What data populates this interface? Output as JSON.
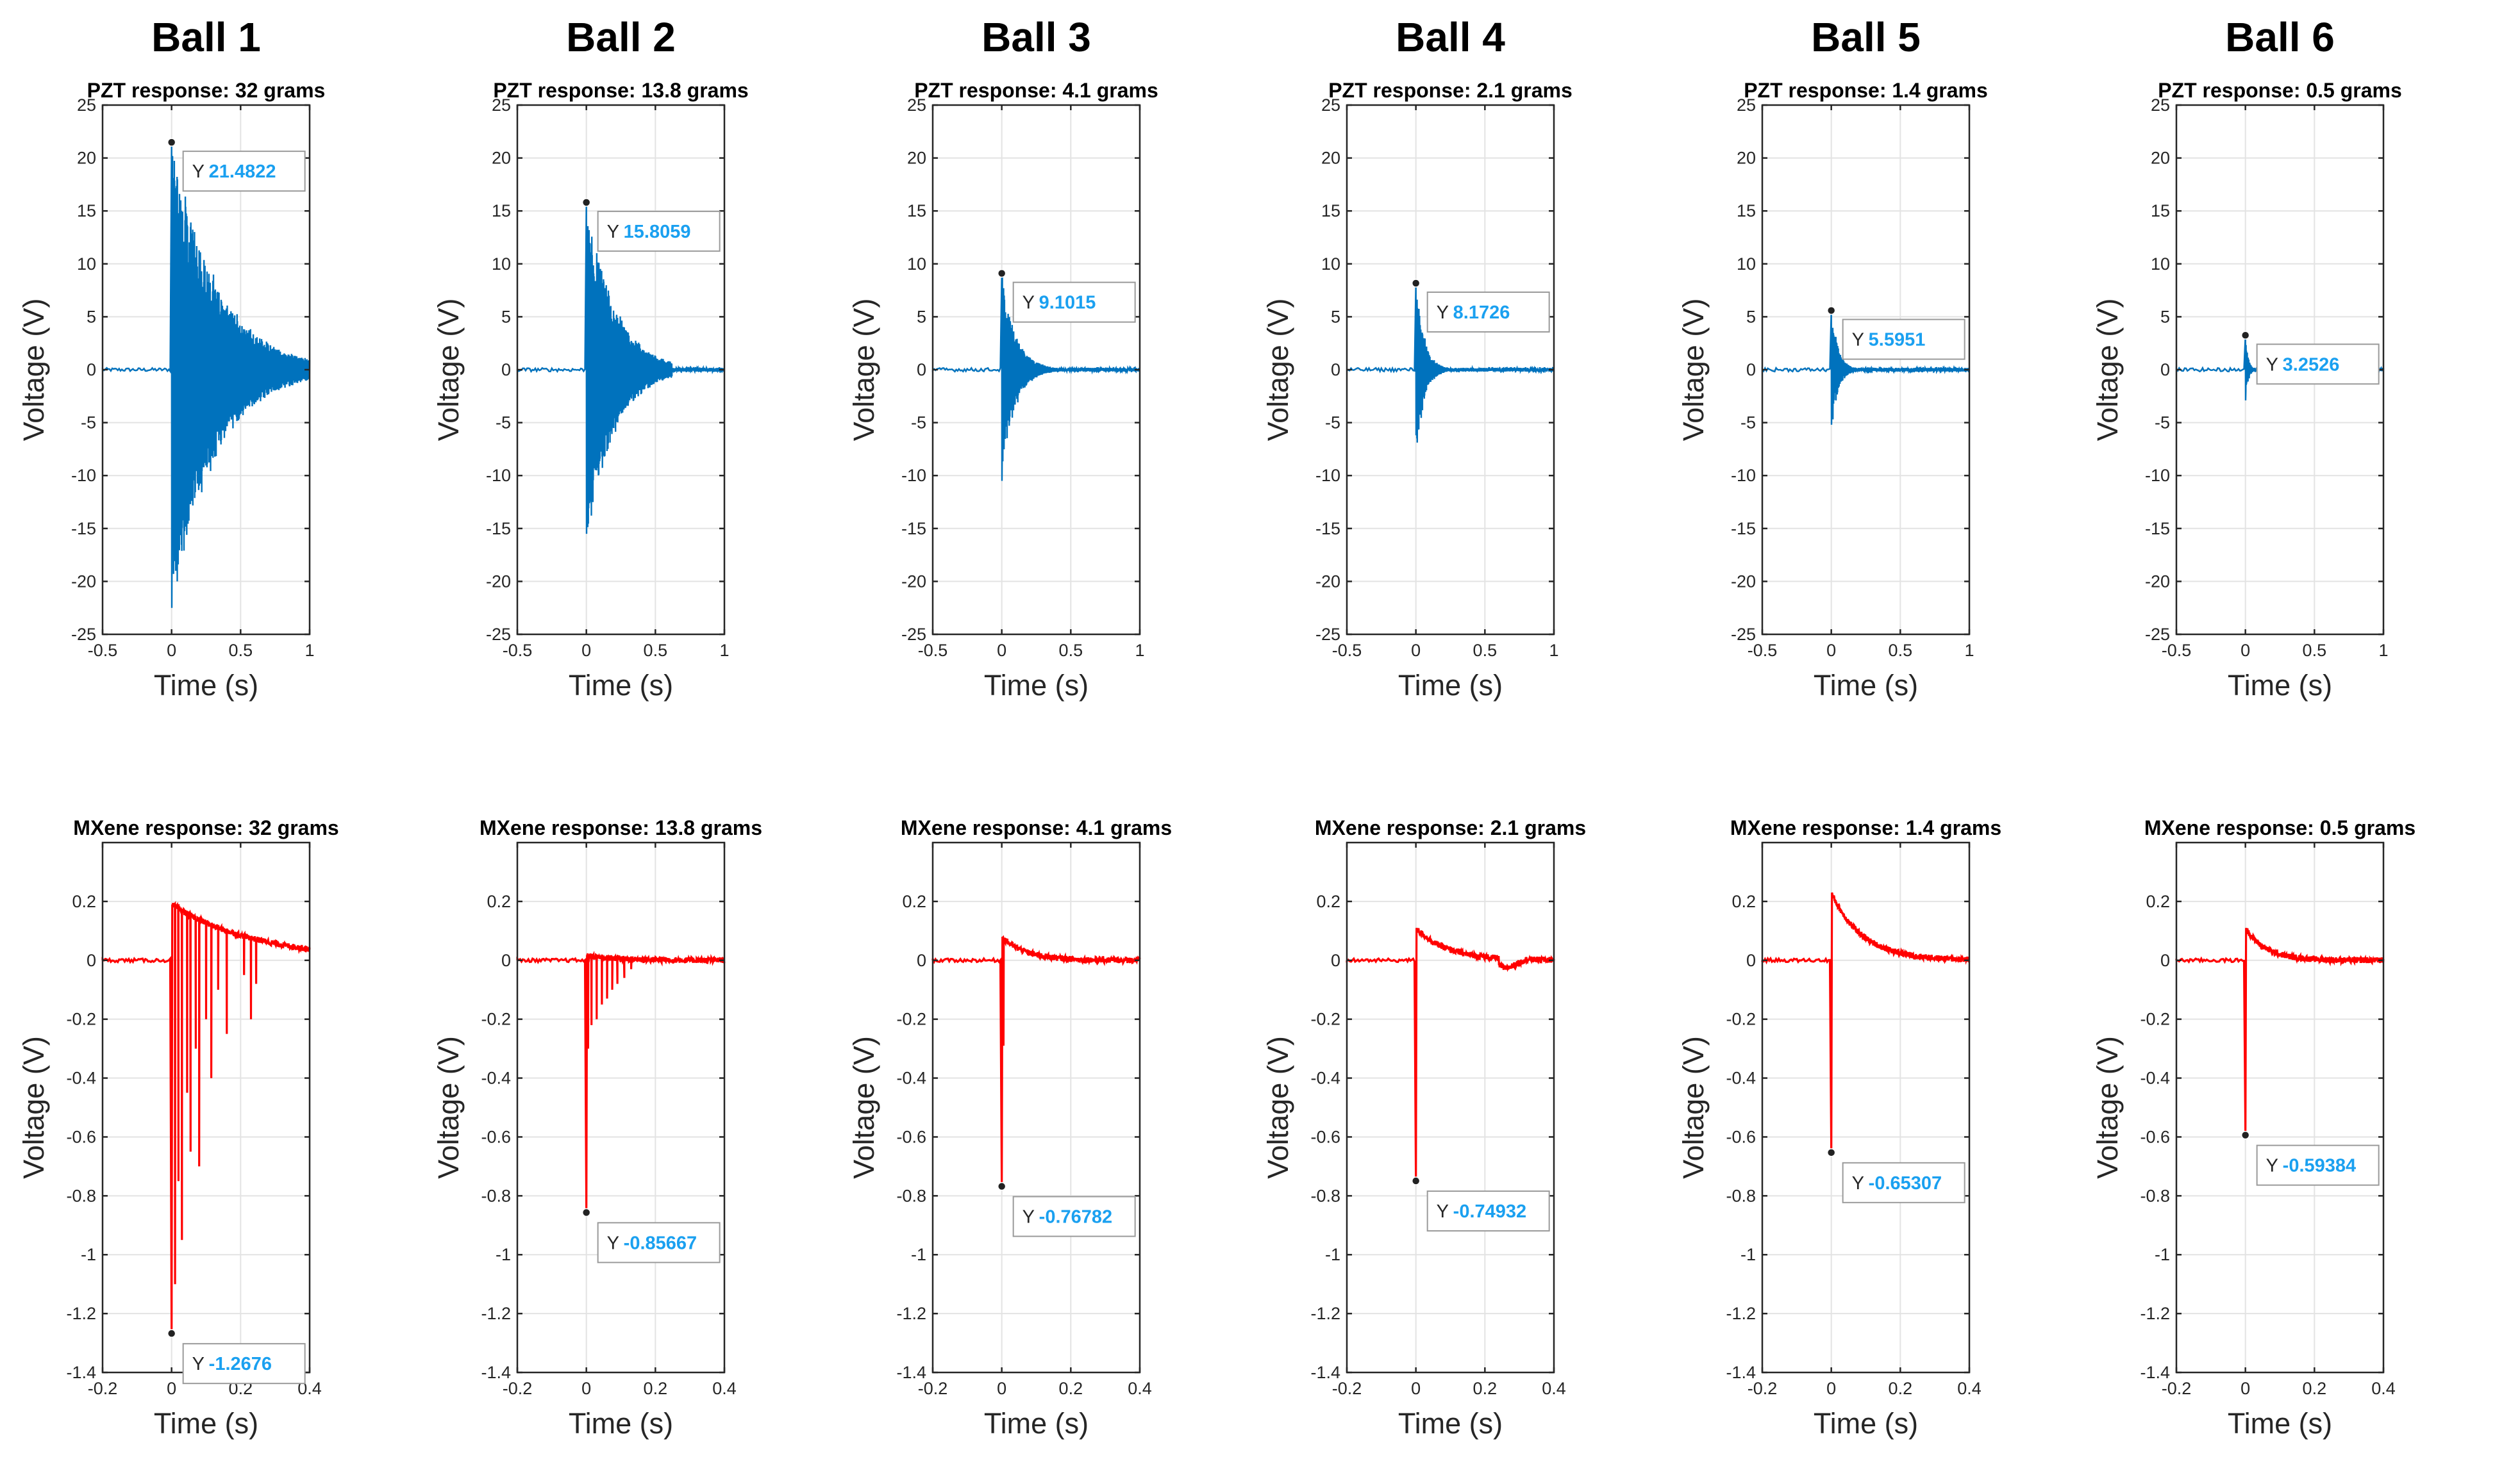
{
  "colors": {
    "pzt": "#0072BD",
    "mxene": "#FF0000",
    "datatip_value": "#1AA0F0"
  },
  "balls": [
    "Ball 1",
    "Ball 2",
    "Ball 3",
    "Ball 4",
    "Ball 5",
    "Ball 6"
  ],
  "chart_data": [
    {
      "row": "PZT",
      "type": "line",
      "xlabel": "Time (s)",
      "ylabel": "Voltage (V)",
      "xlim": [
        -0.5,
        1
      ],
      "ylim": [
        -25,
        25
      ],
      "xticks": [
        -0.5,
        0,
        0.5,
        1
      ],
      "xtick_labels": [
        "-0.5",
        "0",
        "0.5",
        "1"
      ],
      "yticks": [
        -25,
        -20,
        -15,
        -10,
        -5,
        0,
        5,
        10,
        15,
        20,
        25
      ],
      "ytick_labels": [
        "-25",
        "-20",
        "-15",
        "-10",
        "-5",
        "0",
        "5",
        "10",
        "15",
        "20",
        "25"
      ],
      "panels": [
        {
          "title": "PZT response: 32 grams",
          "peak": 21.4822,
          "min": -22.5,
          "decay": 0.32,
          "duration": 1.0,
          "tip_label": "Y",
          "tip_value": "21.4822"
        },
        {
          "title": "PZT response: 13.8 grams",
          "peak": 15.8059,
          "min": -15.5,
          "decay": 0.2,
          "duration": 0.62,
          "tip_label": "Y",
          "tip_value": "15.8059"
        },
        {
          "title": "PZT response: 4.1 grams",
          "peak": 9.1015,
          "min": -10.5,
          "decay": 0.1,
          "duration": 0.5,
          "tip_label": "Y",
          "tip_value": "9.1015"
        },
        {
          "title": "PZT response: 2.1 grams",
          "peak": 8.1726,
          "min": -6.2,
          "decay": 0.06,
          "duration": 0.4,
          "tip_label": "Y",
          "tip_value": "8.1726"
        },
        {
          "title": "PZT response: 1.4 grams",
          "peak": 5.5951,
          "min": -5.2,
          "decay": 0.05,
          "duration": 0.35,
          "tip_label": "Y",
          "tip_value": "5.5951"
        },
        {
          "title": "PZT response: 0.5 grams",
          "peak": 3.2526,
          "min": -2.9,
          "decay": 0.02,
          "duration": 0.2,
          "tip_label": "Y",
          "tip_value": "3.2526"
        }
      ]
    },
    {
      "row": "MXene",
      "type": "line",
      "xlabel": "Time (s)",
      "ylabel": "Voltage (V)",
      "xlim": [
        -0.2,
        0.4
      ],
      "ylim": [
        -1.4,
        0.4
      ],
      "xticks": [
        -0.2,
        0,
        0.2,
        0.4
      ],
      "xtick_labels": [
        "-0.2",
        "0",
        "0.2",
        "0.4"
      ],
      "yticks": [
        -1.4,
        -1.2,
        -1,
        -0.8,
        -0.6,
        -0.4,
        -0.2,
        0,
        0.2
      ],
      "ytick_labels": [
        "-1.4",
        "-1.2",
        "-1",
        "-0.8",
        "-0.6",
        "-0.4",
        "-0.2",
        "0",
        "0.2"
      ],
      "panels": [
        {
          "title": "MXene response: 32 grams",
          "min": -1.2676,
          "plateau": 0.19,
          "decay": 0.25,
          "tip_label": "Y",
          "tip_value": "-1.2676",
          "dips": [
            [
              0.01,
              -1.1
            ],
            [
              0.02,
              -0.75
            ],
            [
              0.03,
              -0.95
            ],
            [
              0.045,
              -0.45
            ],
            [
              0.055,
              -0.65
            ],
            [
              0.07,
              -0.3
            ],
            [
              0.08,
              -0.7
            ],
            [
              0.1,
              -0.2
            ],
            [
              0.115,
              -0.4
            ],
            [
              0.135,
              -0.1
            ],
            [
              0.16,
              -0.25
            ],
            [
              0.21,
              -0.05
            ],
            [
              0.23,
              -0.2
            ],
            [
              0.245,
              -0.08
            ]
          ]
        },
        {
          "title": "MXene response: 13.8 grams",
          "min": -0.85667,
          "plateau": 0.015,
          "decay": 0.1,
          "tip_label": "Y",
          "tip_value": "-0.85667",
          "dips": [
            [
              0.005,
              -0.3
            ],
            [
              0.015,
              -0.22
            ],
            [
              0.03,
              -0.2
            ],
            [
              0.045,
              -0.15
            ],
            [
              0.06,
              -0.13
            ],
            [
              0.075,
              -0.1
            ],
            [
              0.09,
              -0.08
            ],
            [
              0.11,
              -0.06
            ],
            [
              0.13,
              -0.03
            ]
          ]
        },
        {
          "title": "MXene response: 4.1 grams",
          "min": -0.76782,
          "plateau": 0.08,
          "decay": 0.07,
          "tip_label": "Y",
          "tip_value": "-0.76782",
          "dips": [
            [
              0.005,
              -0.29
            ]
          ]
        },
        {
          "title": "MXene response: 2.1 grams",
          "min": -0.74932,
          "plateau": 0.11,
          "decay": 0.09,
          "tip_label": "Y",
          "tip_value": "-0.74932",
          "dips": [],
          "bump": [
            0.26,
            -0.035
          ]
        },
        {
          "title": "MXene response: 1.4 grams",
          "min": -0.65307,
          "plateau": 0.23,
          "decay": 0.09,
          "tip_label": "Y",
          "tip_value": "-0.65307",
          "dips": []
        },
        {
          "title": "MXene response: 0.5 grams",
          "min": -0.59384,
          "plateau": 0.11,
          "decay": 0.06,
          "tip_label": "Y",
          "tip_value": "-0.59384",
          "dips": []
        }
      ]
    }
  ]
}
